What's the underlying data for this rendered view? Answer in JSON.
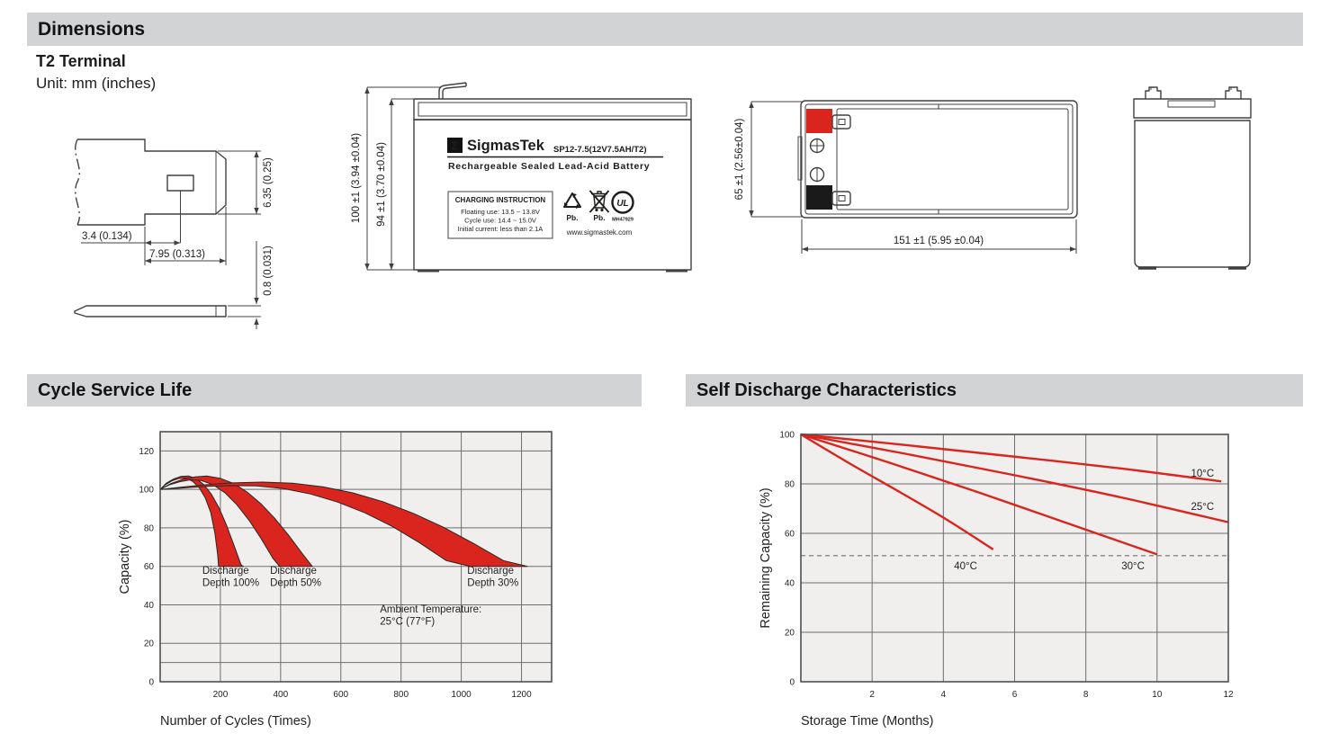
{
  "colors": {
    "accent_red": "#d9251d",
    "plot_bg": "#f0efed",
    "grid": "#6d6e70",
    "plot_border": "#4f5052",
    "dash_line": "#8f9193",
    "band_outline": "#2a2826",
    "header_bar_bg": "#d2d3d4",
    "line_art": "#404042"
  },
  "header": {
    "title": "Dimensions"
  },
  "terminal_info": {
    "title": "T2 Terminal",
    "unit": "Unit: mm (inches)"
  },
  "terminal_drawing": {
    "dim_tab_offset": "3.4 (0.134)",
    "dim_tab_width": "7.95 (0.313)",
    "dim_tab_height": "6.35 (0.25)",
    "dim_thickness": "0.8 (0.031)"
  },
  "front_view": {
    "dim_total_height": "100 ±1 (3.94 ±0.04)",
    "dim_case_height": "94 ±1 (3.70 ±0.04)",
    "label": {
      "sigma": "Σ",
      "brand": "SigmasTek",
      "model": "SP12-7.5(12V7.5AH/T2)",
      "type_line": "Rechargeable Sealed Lead-Acid Battery",
      "charging_title": "CHARGING INSTRUCTION",
      "charging_line1": "Floating use: 13.5 ~ 13.8V",
      "charging_line2": "Cycle use: 14.4 ~ 15.0V",
      "charging_line3": "Initial current: less than 2.1A",
      "pb_recycle": "Pb.",
      "pb_bin": "Pb.",
      "ul_letters": "UL",
      "ul_code": "MH47929",
      "website": "www.sigmastek.com"
    }
  },
  "top_view": {
    "dim_height": "65 ±1 (2.56±0.04)",
    "dim_width": "151 ±1 (5.95 ±0.04)"
  },
  "sections": {
    "cycle_title": "Cycle Service Life",
    "self_discharge_title": "Self Discharge Characteristics"
  },
  "chart_data": [
    {
      "type": "area",
      "title": "Cycle Service Life",
      "xlabel": "Number of Cycles (Times)",
      "ylabel": "Capacity (%)",
      "xlim": [
        0,
        1300
      ],
      "ylim": [
        0,
        130
      ],
      "xticks": [
        200,
        400,
        600,
        800,
        1000,
        1200
      ],
      "yticks": [
        0,
        20,
        40,
        60,
        80,
        100,
        120
      ],
      "xgrid": [
        200,
        400,
        600,
        800,
        1000,
        1200
      ],
      "ygrid": [
        10,
        20,
        40,
        60,
        80,
        100,
        120
      ],
      "grid": true,
      "legend": false,
      "bands": [
        {
          "name": "Discharge Depth 100%",
          "upper": [
            [
              0,
              100
            ],
            [
              20,
              103.2
            ],
            [
              45,
              105.5
            ],
            [
              70,
              106.8
            ],
            [
              95,
              107
            ],
            [
              120,
              105.6
            ],
            [
              145,
              102.5
            ],
            [
              170,
              97.5
            ],
            [
              195,
              90.5
            ],
            [
              220,
              81.5
            ],
            [
              245,
              71
            ],
            [
              268,
              61
            ],
            [
              275,
              60
            ]
          ],
          "lower": [
            [
              0,
              100
            ],
            [
              18,
              102.5
            ],
            [
              40,
              104.5
            ],
            [
              62,
              105.7
            ],
            [
              85,
              105.9
            ],
            [
              108,
              104.2
            ],
            [
              130,
              100.8
            ],
            [
              150,
              95.5
            ],
            [
              168,
              88
            ],
            [
              182,
              77
            ],
            [
              191,
              66
            ],
            [
              194,
              60
            ]
          ]
        },
        {
          "name": "Discharge Depth 50%",
          "upper": [
            [
              0,
              100
            ],
            [
              35,
              103
            ],
            [
              75,
              105.2
            ],
            [
              115,
              106.5
            ],
            [
              155,
              107
            ],
            [
              200,
              105.8
            ],
            [
              245,
              103
            ],
            [
              290,
              98.5
            ],
            [
              335,
              92.5
            ],
            [
              380,
              85
            ],
            [
              425,
              76.5
            ],
            [
              470,
              67
            ],
            [
              505,
              60
            ]
          ],
          "lower": [
            [
              0,
              100
            ],
            [
              30,
              102.3
            ],
            [
              65,
              104
            ],
            [
              100,
              105
            ],
            [
              135,
              104.7
            ],
            [
              175,
              102.5
            ],
            [
              215,
              98.3
            ],
            [
              255,
              92
            ],
            [
              295,
              84
            ],
            [
              335,
              74.5
            ],
            [
              375,
              64
            ],
            [
              397,
              60
            ]
          ]
        },
        {
          "name": "Discharge Depth 30%",
          "upper": [
            [
              0,
              100
            ],
            [
              70,
              101.2
            ],
            [
              150,
              102.4
            ],
            [
              240,
              103.4
            ],
            [
              340,
              103.8
            ],
            [
              440,
              103.2
            ],
            [
              540,
              101.4
            ],
            [
              640,
              98.2
            ],
            [
              740,
              93.6
            ],
            [
              840,
              87.6
            ],
            [
              940,
              80.4
            ],
            [
              1040,
              72
            ],
            [
              1140,
              63
            ],
            [
              1220,
              60
            ]
          ],
          "lower": [
            [
              0,
              100
            ],
            [
              70,
              100.7
            ],
            [
              150,
              101.5
            ],
            [
              230,
              102
            ],
            [
              320,
              101.8
            ],
            [
              410,
              100.4
            ],
            [
              500,
              97.6
            ],
            [
              590,
              93.4
            ],
            [
              680,
              87.8
            ],
            [
              770,
              80.8
            ],
            [
              860,
              72.4
            ],
            [
              950,
              63
            ],
            [
              1030,
              60
            ]
          ]
        }
      ],
      "annotations": [
        {
          "lines": [
            "Discharge",
            "Depth 100%"
          ],
          "x": 140,
          "y": 56
        },
        {
          "lines": [
            "Discharge",
            "Depth 50%"
          ],
          "x": 365,
          "y": 56
        },
        {
          "lines": [
            "Discharge",
            "Depth 30%"
          ],
          "x": 1020,
          "y": 56
        },
        {
          "lines": [
            "Ambient Temperature:",
            "25°C (77°F)"
          ],
          "x": 730,
          "y": 36
        }
      ]
    },
    {
      "type": "line",
      "title": "Self Discharge Characteristics",
      "xlabel": "Storage Time (Months)",
      "ylabel": "Remaining Capacity (%)",
      "xlim": [
        0,
        12
      ],
      "ylim": [
        0,
        100
      ],
      "xticks": [
        2,
        4,
        6,
        8,
        10,
        12
      ],
      "yticks": [
        0,
        20,
        40,
        60,
        80,
        100
      ],
      "xgrid": [
        2,
        4,
        6,
        8,
        10
      ],
      "ygrid": [
        20,
        40,
        60,
        80
      ],
      "grid": true,
      "legend": false,
      "series": [
        {
          "name": "10°C",
          "points": [
            [
              0,
              100
            ],
            [
              3,
              95.6
            ],
            [
              6,
              91
            ],
            [
              9,
              86.2
            ],
            [
              11.8,
              81
            ]
          ]
        },
        {
          "name": "25°C",
          "points": [
            [
              0,
              100
            ],
            [
              3,
              92
            ],
            [
              6,
              83.5
            ],
            [
              9,
              74.5
            ],
            [
              12,
              64.5
            ]
          ]
        },
        {
          "name": "30°C",
          "points": [
            [
              0,
              100
            ],
            [
              2.5,
              88.5
            ],
            [
              5,
              76.5
            ],
            [
              7.5,
              64
            ],
            [
              10,
              51.5
            ]
          ]
        },
        {
          "name": "40°C",
          "points": [
            [
              0,
              100
            ],
            [
              1.4,
              88
            ],
            [
              2.8,
              76.5
            ],
            [
              4.1,
              65.5
            ],
            [
              5.4,
              53.5
            ]
          ]
        }
      ],
      "refline": {
        "y": 51,
        "style": "dashed"
      },
      "annotations": [
        {
          "lines": [
            "10°C"
          ],
          "x": 10.95,
          "y": 83
        },
        {
          "lines": [
            "25°C"
          ],
          "x": 10.95,
          "y": 69.5
        },
        {
          "lines": [
            "30°C"
          ],
          "x": 9.0,
          "y": 45.5
        },
        {
          "lines": [
            "40°C"
          ],
          "x": 4.3,
          "y": 45.5
        }
      ]
    }
  ]
}
